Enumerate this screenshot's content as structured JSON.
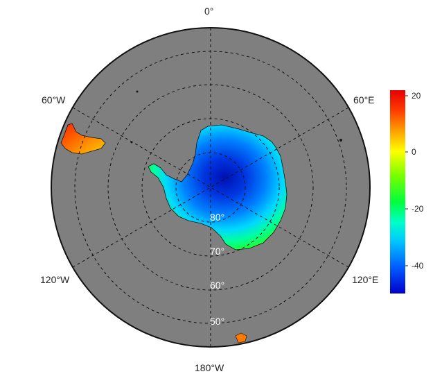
{
  "map": {
    "projection": "south-polar-stereographic",
    "background_color": "#7f7f7f",
    "longitude_labels": {
      "top": "0°",
      "upper_left": "60°W",
      "upper_right": "60°E",
      "lower_left": "120°W",
      "lower_right": "120°E",
      "bottom": "180°W"
    },
    "latitude_labels": [
      "80°",
      "70°",
      "60°",
      "50°"
    ]
  },
  "colorbar": {
    "min": -50,
    "max": 22,
    "ticks": [
      "20",
      "0",
      "-20",
      "-40"
    ],
    "colors": [
      "#0000c8",
      "#0055ff",
      "#00c8ff",
      "#00ffc8",
      "#00ff3c",
      "#78ff00",
      "#ffff00",
      "#ffa000",
      "#ff3c00",
      "#e60000"
    ]
  }
}
